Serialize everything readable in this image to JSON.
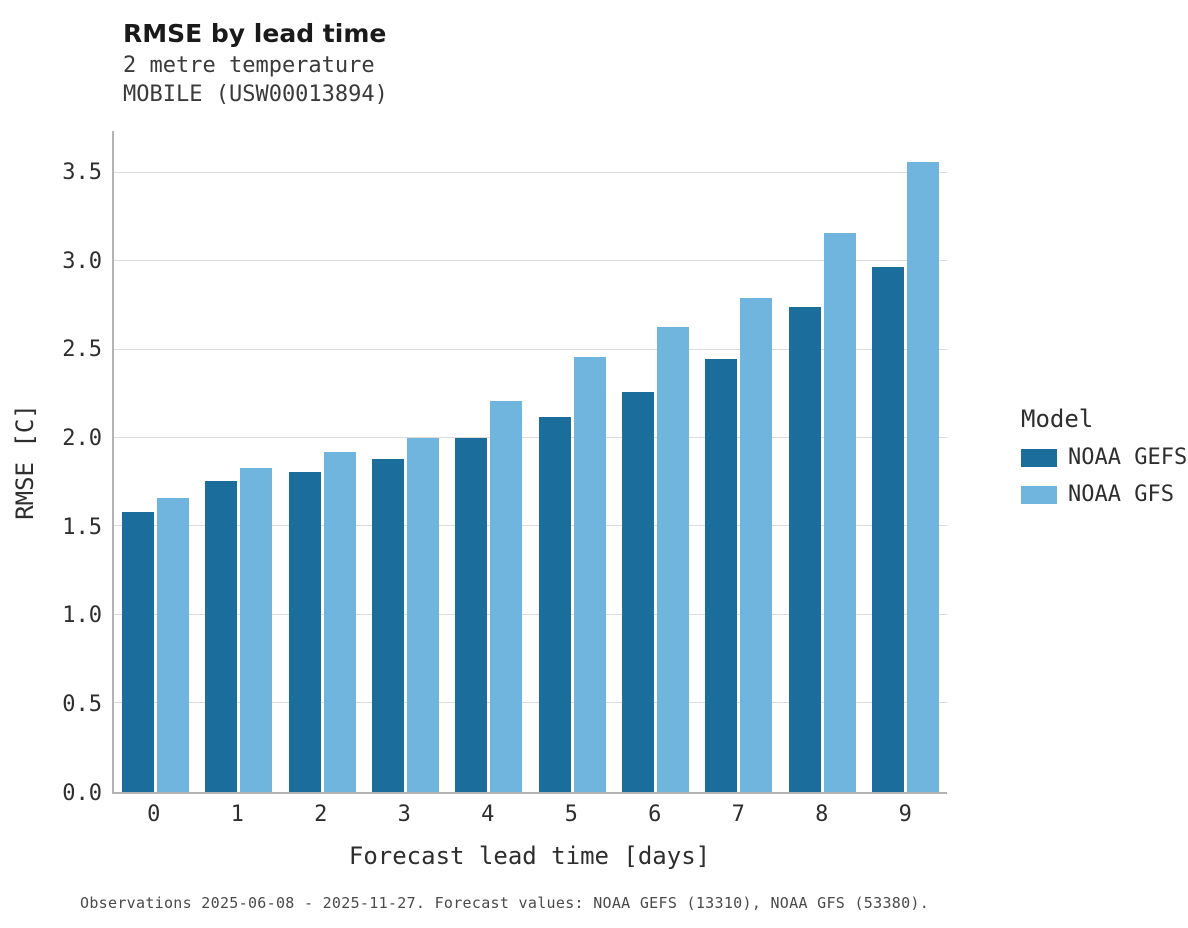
{
  "chart_data": {
    "type": "bar",
    "title": "RMSE by lead time",
    "subtitle": [
      "2 metre temperature",
      "MOBILE (USW00013894)"
    ],
    "xlabel": "Forecast lead time [days]",
    "ylabel": "RMSE [C]",
    "categories": [
      "0",
      "1",
      "2",
      "3",
      "4",
      "5",
      "6",
      "7",
      "8",
      "9"
    ],
    "series": [
      {
        "name": "NOAA GEFS",
        "color": "#1b6e9c",
        "values": [
          1.58,
          1.76,
          1.81,
          1.88,
          2.0,
          2.12,
          2.26,
          2.45,
          2.74,
          2.97
        ]
      },
      {
        "name": "NOAA GFS",
        "color": "#6fb5de",
        "values": [
          1.66,
          1.83,
          1.92,
          2.0,
          2.21,
          2.46,
          2.63,
          2.79,
          3.16,
          3.56
        ]
      }
    ],
    "ylim": [
      0,
      3.74
    ],
    "yticks": [
      0.0,
      0.5,
      1.0,
      1.5,
      2.0,
      2.5,
      3.0,
      3.5
    ],
    "grid": "horizontal",
    "legend_title": "Model",
    "legend_position": "right",
    "caption": "Observations 2025-06-08 - 2025-11-27. Forecast values: NOAA GEFS (13310), NOAA GFS (53380)."
  }
}
